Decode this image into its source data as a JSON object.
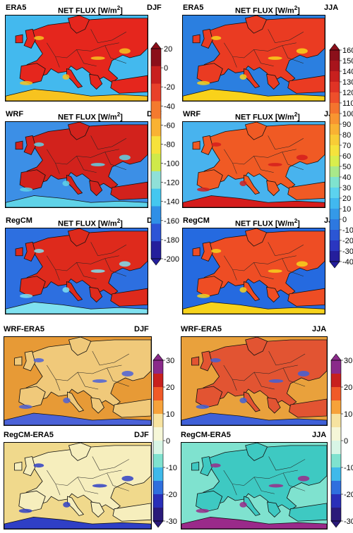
{
  "panels": [
    {
      "id": "era5-djf",
      "left": "ERA5",
      "center": "NET FLUX [W/m",
      "sup": "2",
      "close": "]",
      "right": "DJF",
      "sea": "#43b9ee",
      "land": "#e5261d",
      "alt": "#f7c31f"
    },
    {
      "id": "era5-jja",
      "left": "ERA5",
      "center": "NET FLUX [W/m",
      "sup": "2",
      "close": "]",
      "right": "JJA",
      "sea": "#2b7fe0",
      "land": "#ea3b22",
      "alt": "#f9d21a"
    },
    {
      "id": "wrf-djf",
      "left": "WRF",
      "center": "NET FLUX [W/m",
      "sup": "2",
      "close": "]",
      "right": "DJF",
      "sea": "#3c8fe6",
      "land": "#d2221c",
      "alt": "#5fd2e8"
    },
    {
      "id": "wrf-jja",
      "left": "WRF",
      "center": "NET FLUX [W/m",
      "sup": "2",
      "close": "]",
      "right": "JJA",
      "sea": "#48b3ee",
      "land": "#f05a24",
      "alt": "#d51d1d"
    },
    {
      "id": "regcm-djf",
      "left": "RegCM",
      "center": "NET FLUX [W/m",
      "sup": "2",
      "close": "]",
      "right": "DJF",
      "sea": "#2d6fe0",
      "land": "#de2a1c",
      "alt": "#7fe1f0"
    },
    {
      "id": "regcm-jja",
      "left": "RegCM",
      "center": "NET FLUX [W/m",
      "sup": "2",
      "close": "]",
      "right": "JJA",
      "sea": "#256ae0",
      "land": "#ee4d24",
      "alt": "#f7d31c"
    },
    {
      "id": "wrf-era5-djf",
      "left": "WRF-ERA5",
      "center": "",
      "sup": "",
      "close": "",
      "right": "DJF",
      "sea": "#e79a36",
      "land": "#f0c97a",
      "alt": "#4b62d8"
    },
    {
      "id": "wrf-era5-jja",
      "left": "WRF-ERA5",
      "center": "",
      "sup": "",
      "close": "",
      "right": "JJA",
      "sea": "#e9a13c",
      "land": "#e25432",
      "alt": "#3f60d8"
    },
    {
      "id": "regcm-era5-djf",
      "left": "RegCM-ERA5",
      "center": "",
      "sup": "",
      "close": "",
      "right": "DJF",
      "sea": "#f0d98c",
      "land": "#f6eebd",
      "alt": "#2f3fc6"
    },
    {
      "id": "regcm-era5-jja",
      "left": "RegCM-ERA5",
      "center": "",
      "sup": "",
      "close": "",
      "right": "JJA",
      "sea": "#7fe2cf",
      "land": "#3ec9c2",
      "alt": "#9a2a8a"
    }
  ],
  "colorbars": [
    {
      "id": "djf-flux",
      "ticks": [
        "20",
        "0",
        "-20",
        "-40",
        "-60",
        "-80",
        "-100",
        "-120",
        "-140",
        "-160",
        "-180",
        "-200"
      ],
      "colors": [
        "#8b0f1a",
        "#c8201e",
        "#e8402a",
        "#f47a2e",
        "#f9b233",
        "#f7e23b",
        "#cfe94a",
        "#8fe0d8",
        "#44c7ef",
        "#2f8fe6",
        "#2c54d6",
        "#241e9c"
      ]
    },
    {
      "id": "jja-flux",
      "ticks": [
        "160",
        "150",
        "140",
        "130",
        "120",
        "110",
        "100",
        "90",
        "80",
        "70",
        "60",
        "50",
        "40",
        "30",
        "20",
        "10",
        "0",
        "-10",
        "-20",
        "-30",
        "-40"
      ],
      "colors": [
        "#8b0f1a",
        "#a8141c",
        "#c8201e",
        "#e03325",
        "#ee4f2b",
        "#f4742e",
        "#f89531",
        "#f9b233",
        "#f8cd36",
        "#f5e33c",
        "#d9ee4d",
        "#a9e98a",
        "#7fe3cf",
        "#5cd3ef",
        "#41b8ef",
        "#3499e8",
        "#2d78e0",
        "#2b56d4",
        "#2a36c0",
        "#241e9c"
      ]
    },
    {
      "id": "djf-diff",
      "ticks": [
        "30",
        "20",
        "10",
        "0",
        "-10",
        "-20",
        "-30"
      ],
      "colors": [
        "#8a2a8a",
        "#c8201e",
        "#f05a28",
        "#f7a23a",
        "#f7e3a0",
        "#f6f7d8",
        "#d8f6e6",
        "#7fe2cf",
        "#3fb9ea",
        "#2f6fde",
        "#2a2fb8",
        "#2a1a7a"
      ]
    },
    {
      "id": "jja-diff",
      "ticks": [
        "30",
        "20",
        "10",
        "0",
        "-10",
        "-20",
        "-30"
      ],
      "colors": [
        "#8a2a8a",
        "#c8201e",
        "#f05a28",
        "#f7a23a",
        "#f7e3a0",
        "#f6f7d8",
        "#d8f6e6",
        "#7fe2cf",
        "#3fb9ea",
        "#2f6fde",
        "#2a2fb8",
        "#2a1a7a"
      ]
    }
  ]
}
